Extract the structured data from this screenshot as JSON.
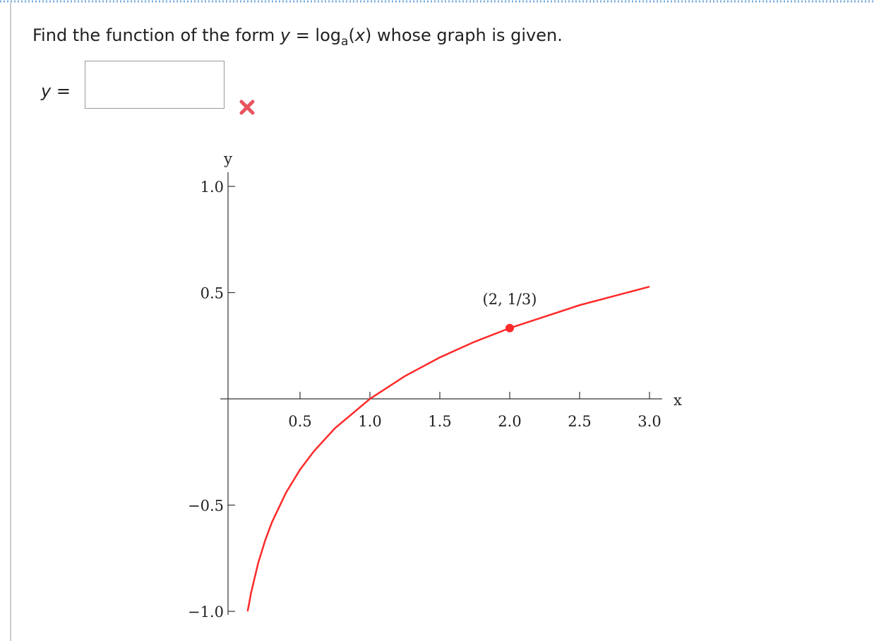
{
  "question": {
    "parts": [
      "Find the function of the form ",
      "y",
      " = log",
      "a",
      "(",
      "x",
      ") whose graph is given."
    ]
  },
  "answer": {
    "label_parts": [
      "y",
      " ="
    ]
  },
  "chart_data": {
    "type": "line",
    "x_label": "x",
    "y_label": "y",
    "x": [
      0.125,
      0.15,
      0.2,
      0.25,
      0.3,
      0.4,
      0.5,
      0.6,
      0.75,
      1.0,
      1.25,
      1.5,
      1.75,
      2.0,
      2.5,
      3.0
    ],
    "series": [
      {
        "color": "#ff2a2a",
        "values": [
          -1,
          -0.912,
          -0.774,
          -0.667,
          -0.579,
          -0.441,
          -0.333,
          -0.246,
          -0.138,
          0,
          0.107,
          0.195,
          0.269,
          0.333,
          0.441,
          0.528
        ]
      }
    ],
    "points": [
      {
        "x": 2,
        "y": 0.333,
        "label": "(2, 1/3)",
        "color": "#ff2a2a"
      }
    ],
    "xlim": [
      0,
      3.05
    ],
    "ylim": [
      -1,
      1
    ],
    "xticks": [
      0.5,
      {
        "value": 1,
        "label": "1.0"
      },
      1.5,
      {
        "value": 2,
        "label": "2.0"
      },
      2.5,
      {
        "value": 3,
        "label": "3.0"
      }
    ],
    "yticks": [
      {
        "value": 1,
        "label": "1.0"
      },
      0.5,
      {
        "value": -0.5,
        "label": "−0.5"
      },
      {
        "value": -1,
        "label": "−1.0"
      }
    ]
  }
}
